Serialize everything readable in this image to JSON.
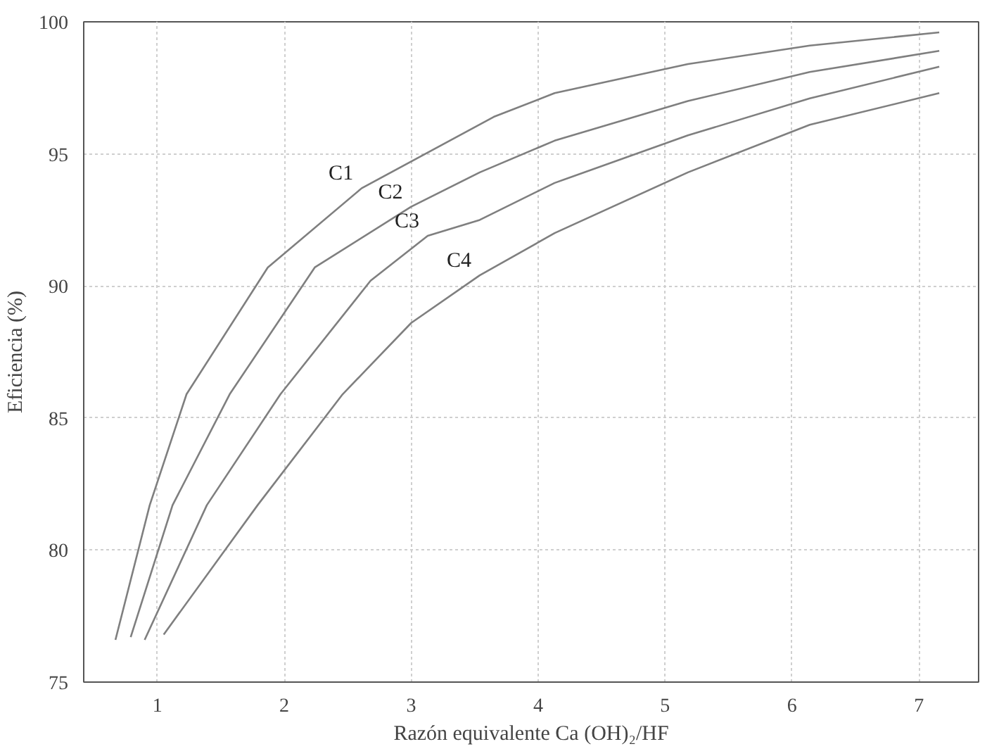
{
  "chart_data": {
    "type": "line",
    "xlabel": "Razón equivalente Ca (OH)₂/HF",
    "ylabel": "Eficiencia (%)",
    "xlim": [
      0.42,
      7.47
    ],
    "ylim": [
      75,
      100
    ],
    "xticks": [
      1,
      2,
      3,
      4,
      5,
      6,
      7
    ],
    "yticks": [
      75,
      80,
      85,
      90,
      95,
      100
    ],
    "grid": true,
    "line_style": "solid",
    "marker": "none",
    "series": [
      {
        "name": "C1",
        "color": "#7f7f7f",
        "x": [
          0.67,
          0.94,
          1.23,
          1.87,
          2.61,
          3.65,
          4.13,
          5.18,
          6.14,
          7.16
        ],
        "values": [
          76.6,
          81.7,
          85.9,
          90.7,
          93.7,
          96.4,
          97.3,
          98.4,
          99.1,
          99.6
        ]
      },
      {
        "name": "C2",
        "color": "#7f7f7f",
        "x": [
          0.79,
          1.12,
          1.57,
          2.24,
          3.0,
          3.54,
          4.13,
          5.18,
          6.14,
          7.16
        ],
        "values": [
          76.7,
          81.7,
          85.9,
          90.7,
          93.0,
          94.3,
          95.5,
          97.0,
          98.1,
          98.9
        ]
      },
      {
        "name": "C3",
        "color": "#7f7f7f",
        "x": [
          0.9,
          1.39,
          1.97,
          2.68,
          3.13,
          3.54,
          4.13,
          5.18,
          6.14,
          7.16
        ],
        "values": [
          76.6,
          81.7,
          85.9,
          90.2,
          91.9,
          92.5,
          93.9,
          95.7,
          97.1,
          98.3
        ]
      },
      {
        "name": "C4",
        "color": "#7f7f7f",
        "x": [
          1.05,
          1.79,
          2.46,
          3.0,
          3.54,
          4.13,
          5.18,
          6.14,
          7.16
        ],
        "values": [
          76.8,
          81.7,
          85.9,
          88.6,
          90.4,
          92.0,
          94.3,
          96.1,
          97.3
        ]
      }
    ],
    "legend": false
  }
}
